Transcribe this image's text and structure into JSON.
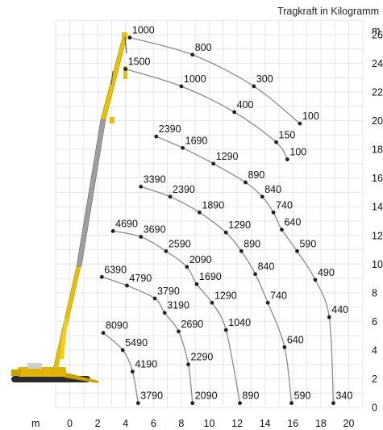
{
  "chart_data": {
    "type": "line",
    "title": "Tragkraft in Kilogramm",
    "xlabel": "m",
    "ylabel": "m",
    "xlim": [
      -1,
      21
    ],
    "ylim": [
      0,
      27
    ],
    "x_ticks": [
      0,
      2,
      4,
      6,
      8,
      10,
      12,
      14,
      16,
      18,
      20
    ],
    "y_ticks": [
      0,
      2,
      4,
      6,
      8,
      10,
      12,
      14,
      16,
      18,
      20,
      22,
      24,
      26
    ],
    "grid": true,
    "series": [
      {
        "points": [
          {
            "x": 4.3,
            "y": 25.8,
            "load": "1000"
          },
          {
            "x": 8.8,
            "y": 24.6,
            "load": "800"
          },
          {
            "x": 13.2,
            "y": 22.4,
            "load": "300"
          },
          {
            "x": 16.5,
            "y": 19.8,
            "load": "100"
          }
        ]
      },
      {
        "points": [
          {
            "x": 4.0,
            "y": 23.6,
            "load": "1500"
          },
          {
            "x": 8.0,
            "y": 22.4,
            "load": "1000"
          },
          {
            "x": 11.8,
            "y": 20.6,
            "load": "400"
          },
          {
            "x": 14.8,
            "y": 18.5,
            "load": "150"
          },
          {
            "x": 15.6,
            "y": 17.3,
            "load": "100"
          }
        ]
      },
      {
        "points": [
          {
            "x": 6.2,
            "y": 18.9,
            "load": "2390"
          },
          {
            "x": 8.1,
            "y": 18.1,
            "load": "1690"
          },
          {
            "x": 10.3,
            "y": 17.0,
            "load": "1290"
          },
          {
            "x": 12.6,
            "y": 15.7,
            "load": "890"
          },
          {
            "x": 13.8,
            "y": 14.7,
            "load": "840"
          },
          {
            "x": 14.6,
            "y": 13.6,
            "load": "740"
          },
          {
            "x": 15.2,
            "y": 12.4,
            "load": "640"
          },
          {
            "x": 16.3,
            "y": 10.9,
            "load": "590"
          },
          {
            "x": 17.6,
            "y": 8.9,
            "load": "490"
          },
          {
            "x": 18.6,
            "y": 6.3,
            "load": "440"
          },
          {
            "x": 18.9,
            "y": 0.3,
            "load": "340"
          }
        ]
      },
      {
        "points": [
          {
            "x": 5.1,
            "y": 15.4,
            "load": "3390"
          },
          {
            "x": 7.2,
            "y": 14.7,
            "load": "2390"
          },
          {
            "x": 9.3,
            "y": 13.6,
            "load": "1890"
          },
          {
            "x": 11.2,
            "y": 12.2,
            "load": "1290"
          },
          {
            "x": 12.3,
            "y": 10.9,
            "load": "890"
          },
          {
            "x": 13.3,
            "y": 9.3,
            "load": "840"
          },
          {
            "x": 14.2,
            "y": 7.3,
            "load": "740"
          },
          {
            "x": 15.4,
            "y": 4.2,
            "load": "640"
          },
          {
            "x": 15.9,
            "y": 0.3,
            "load": "590"
          }
        ]
      },
      {
        "points": [
          {
            "x": 3.1,
            "y": 12.3,
            "load": "4690"
          },
          {
            "x": 5.1,
            "y": 11.9,
            "load": "3690"
          },
          {
            "x": 6.9,
            "y": 10.9,
            "load": "2590"
          },
          {
            "x": 8.4,
            "y": 9.8,
            "load": "2090"
          },
          {
            "x": 9.1,
            "y": 8.6,
            "load": "1690"
          },
          {
            "x": 10.2,
            "y": 7.3,
            "load": "1290"
          },
          {
            "x": 11.2,
            "y": 5.4,
            "load": "1040"
          },
          {
            "x": 12.2,
            "y": 0.3,
            "load": "890"
          }
        ]
      },
      {
        "points": [
          {
            "x": 2.3,
            "y": 9.1,
            "load": "6390"
          },
          {
            "x": 4.1,
            "y": 8.5,
            "load": "4790"
          },
          {
            "x": 6.1,
            "y": 7.6,
            "load": "3790"
          },
          {
            "x": 6.8,
            "y": 6.6,
            "load": "3190"
          },
          {
            "x": 7.8,
            "y": 5.3,
            "load": "2690"
          },
          {
            "x": 8.5,
            "y": 3.0,
            "load": "2290"
          },
          {
            "x": 8.8,
            "y": 0.3,
            "load": "2090"
          }
        ]
      },
      {
        "points": [
          {
            "x": 2.4,
            "y": 5.2,
            "load": "8090"
          },
          {
            "x": 3.8,
            "y": 4.0,
            "load": "5490"
          },
          {
            "x": 4.5,
            "y": 2.5,
            "load": "4190"
          },
          {
            "x": 4.9,
            "y": 0.3,
            "load": "3790"
          }
        ]
      }
    ]
  }
}
